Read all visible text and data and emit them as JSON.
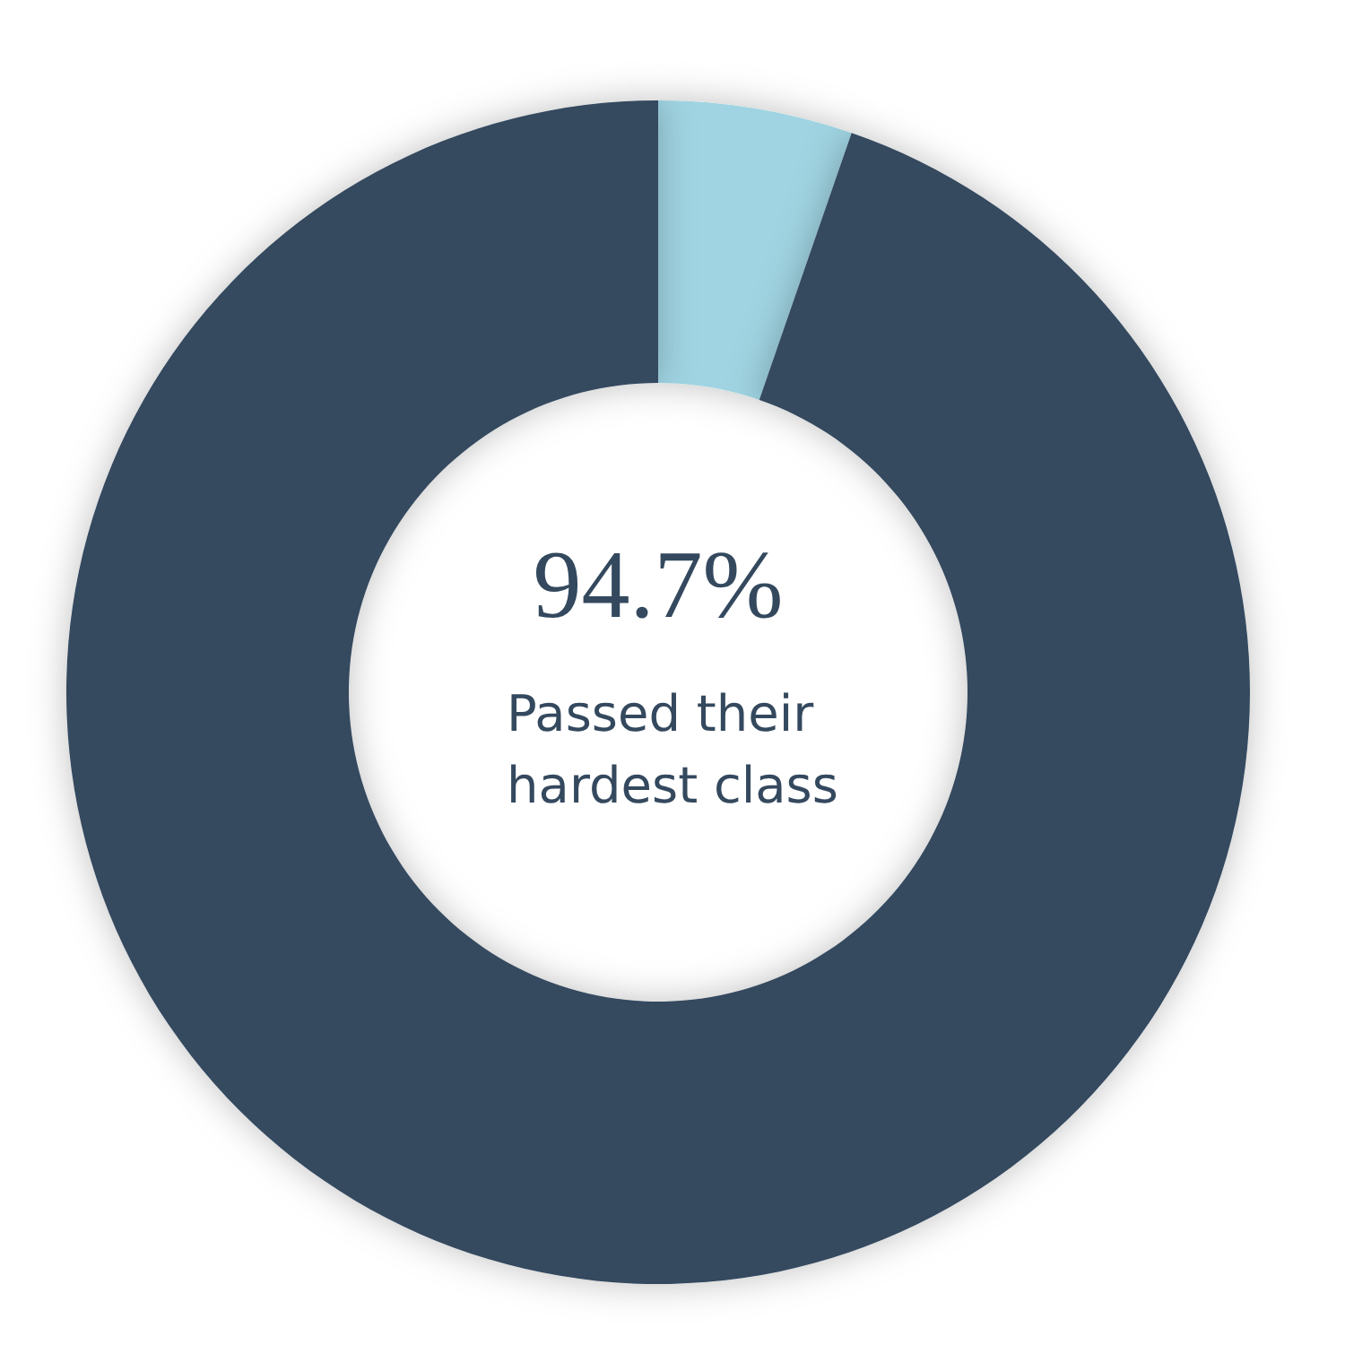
{
  "chart_data": {
    "type": "donut",
    "categories": [
      null,
      null
    ],
    "values": [
      5.3,
      94.7
    ],
    "colors": [
      "#a0d4e2",
      "#34495e"
    ],
    "value_labels": [
      null,
      "94.7%"
    ],
    "annotations": [
      "Passed their\nhardest class"
    ]
  }
}
